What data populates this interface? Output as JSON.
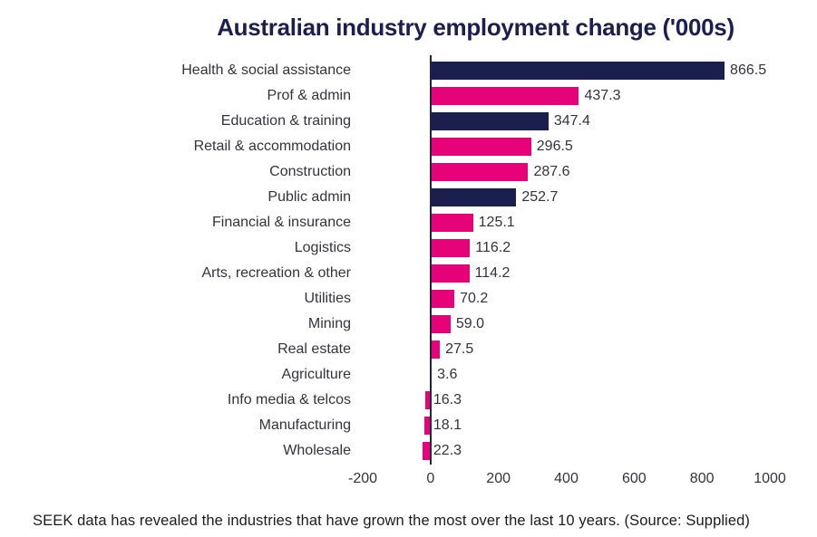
{
  "title": "Australian industry employment change ('000s)",
  "caption": "SEEK data has revealed the industries that have grown the most over the last 10 years. (Source: Supplied)",
  "colors": {
    "navy": "#1A1F4E",
    "pink": "#E60278",
    "axis": "#23233A"
  },
  "chart_data": {
    "type": "bar",
    "orientation": "horizontal",
    "title": "Australian industry employment change ('000s)",
    "categories": [
      "Health & social assistance",
      "Prof & admin",
      "Education & training",
      "Retail & accommodation",
      "Construction",
      "Public admin",
      "Financial & insurance",
      "Logistics",
      "Arts, recreation & other",
      "Utilities",
      "Mining",
      "Real estate",
      "Agriculture",
      "Info media & telcos",
      "Manufacturing",
      "Wholesale"
    ],
    "values": [
      866.5,
      437.3,
      347.4,
      296.5,
      287.6,
      252.7,
      125.1,
      116.2,
      114.2,
      70.2,
      59.0,
      27.5,
      3.6,
      -16.3,
      -18.1,
      -22.3
    ],
    "value_labels": [
      "866.5",
      "437.3",
      "347.4",
      "296.5",
      "287.6",
      "252.7",
      "125.1",
      "116.2",
      "114.2",
      "70.2",
      "59.0",
      "27.5",
      "3.6",
      "16.3",
      "18.1",
      "22.3"
    ],
    "bar_colors": [
      "navy",
      "pink",
      "navy",
      "pink",
      "pink",
      "navy",
      "pink",
      "pink",
      "pink",
      "pink",
      "pink",
      "pink",
      "pink",
      "pink",
      "pink",
      "pink"
    ],
    "xlim": [
      -200,
      1000
    ],
    "x_ticks": [
      -200,
      0,
      200,
      400,
      600,
      800,
      1000
    ],
    "grid": false,
    "legend": false
  }
}
